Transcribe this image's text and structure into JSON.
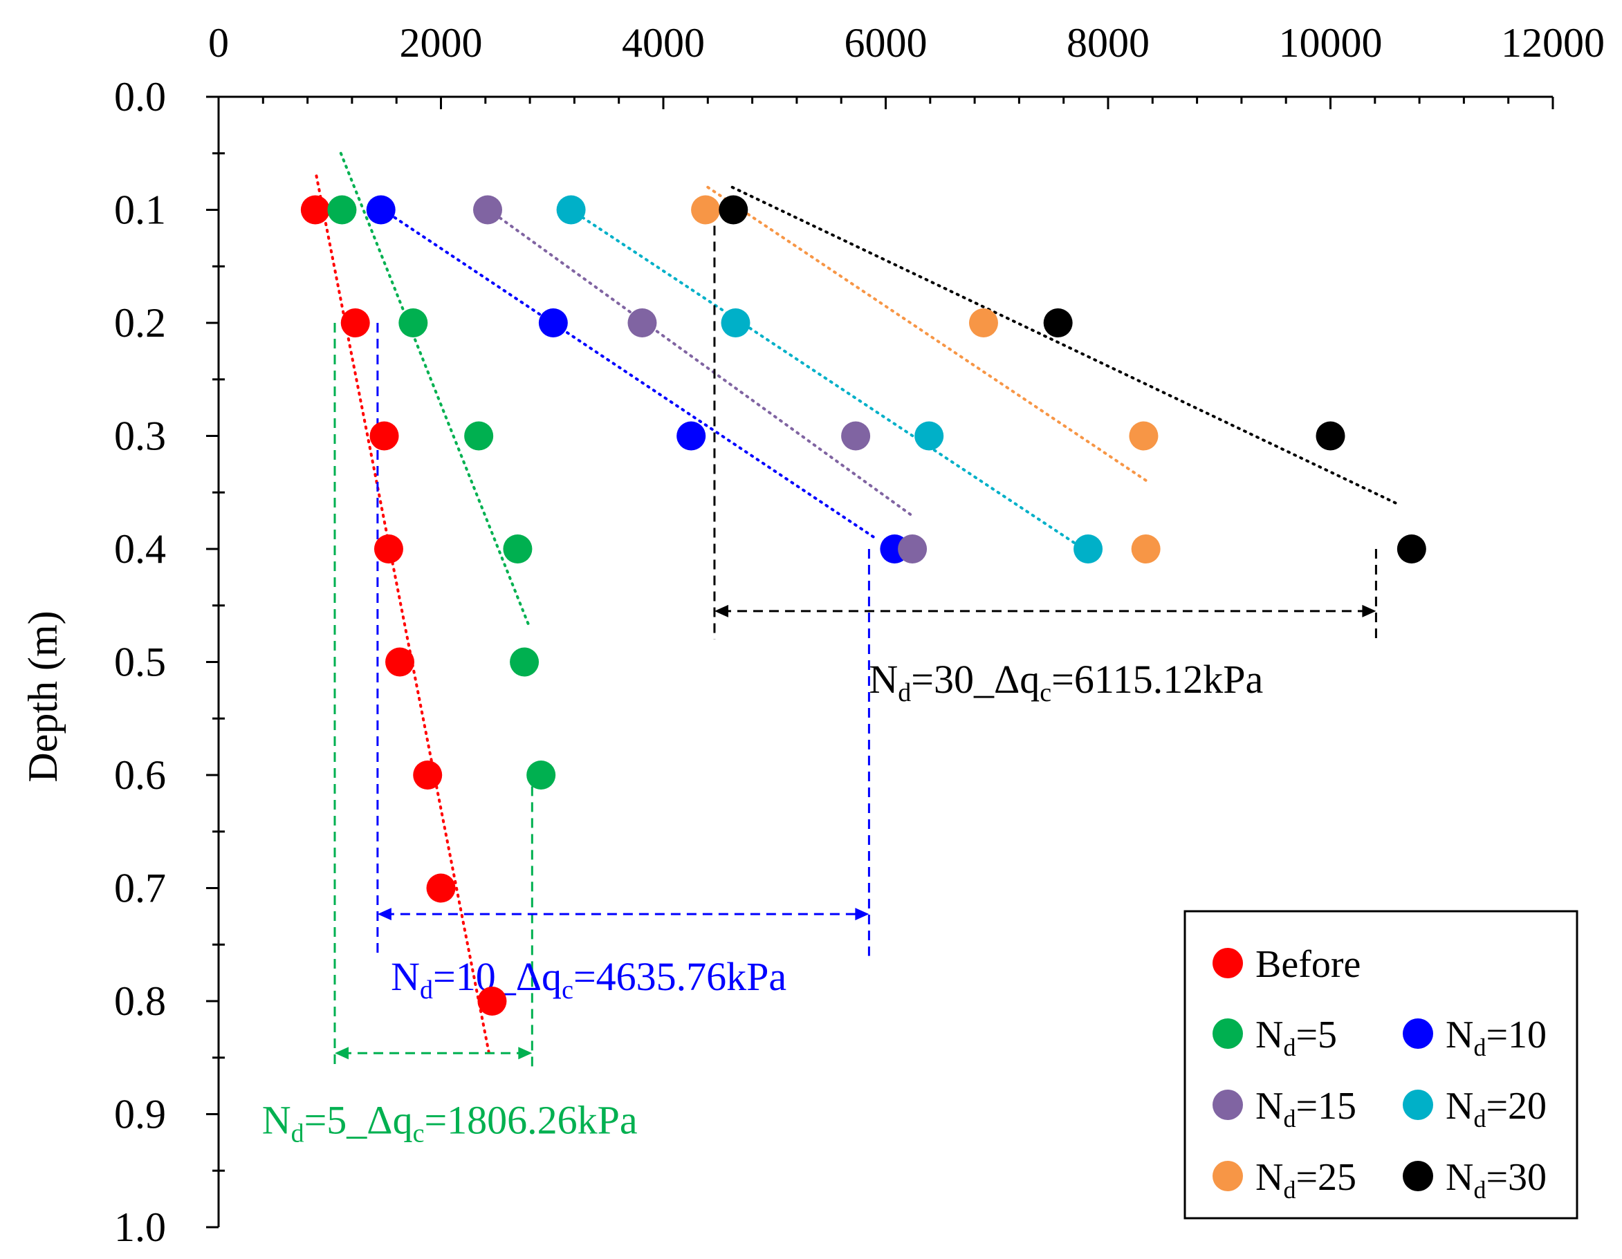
{
  "chart_data": {
    "type": "scatter",
    "title": "",
    "xlabel": "",
    "ylabel": "Depth (m)",
    "xlim": [
      0,
      12000
    ],
    "ylim": [
      0,
      1.0
    ],
    "y_inverted": true,
    "x_axis_position": "top",
    "x_ticks": [
      0,
      2000,
      4000,
      6000,
      8000,
      10000,
      12000
    ],
    "y_ticks": [
      0.0,
      0.1,
      0.2,
      0.3,
      0.4,
      0.5,
      0.6,
      0.7,
      0.8,
      0.9,
      1.0
    ],
    "x_tick_labels": [
      "0",
      "2000",
      "4000",
      "6000",
      "8000",
      "10000",
      "12000"
    ],
    "y_tick_labels": [
      "0.0",
      "0.1",
      "0.2",
      "0.3",
      "0.4",
      "0.5",
      "0.6",
      "0.7",
      "0.8",
      "0.9",
      "1.0"
    ],
    "legend_position": "bottom-right",
    "series": [
      {
        "name": "Before",
        "sub": "",
        "color": "#ff0000",
        "x": [
          870,
          1230,
          1490,
          1530,
          1630,
          1880,
          2000,
          2460
        ],
        "y": [
          0.1,
          0.2,
          0.3,
          0.4,
          0.5,
          0.6,
          0.7,
          0.8
        ],
        "trend": {
          "x": [
            880,
            2440
          ],
          "y": [
            0.07,
            0.85
          ]
        }
      },
      {
        "name": "N",
        "sub": "d",
        "suffix": "=5",
        "color": "#00b050",
        "x": [
          1110,
          1750,
          2340,
          2690,
          2750,
          2900
        ],
        "y": [
          0.1,
          0.2,
          0.3,
          0.4,
          0.5,
          0.6
        ],
        "trend": {
          "x": [
            1100,
            2800
          ],
          "y": [
            0.05,
            0.47
          ]
        }
      },
      {
        "name": "N",
        "sub": "d",
        "suffix": "=10",
        "color": "#0000ff",
        "x": [
          1460,
          3010,
          4250,
          6080
        ],
        "y": [
          0.1,
          0.2,
          0.3,
          0.4
        ],
        "trend": {
          "x": [
            1480,
            5900
          ],
          "y": [
            0.1,
            0.39
          ]
        }
      },
      {
        "name": "N",
        "sub": "d",
        "suffix": "=15",
        "color": "#8064a2",
        "x": [
          2420,
          3810,
          5730,
          6240
        ],
        "y": [
          0.1,
          0.2,
          0.3,
          0.4
        ],
        "trend": {
          "x": [
            2430,
            6230
          ],
          "y": [
            0.1,
            0.37
          ]
        }
      },
      {
        "name": "N",
        "sub": "d",
        "suffix": "=20",
        "color": "#00b0c8",
        "x": [
          3170,
          4650,
          6390,
          7820
        ],
        "y": [
          0.1,
          0.2,
          0.3,
          0.4
        ],
        "trend": {
          "x": [
            3170,
            7780
          ],
          "y": [
            0.1,
            0.4
          ]
        }
      },
      {
        "name": "N",
        "sub": "d",
        "suffix": "=25",
        "color": "#f79646",
        "x": [
          4380,
          6880,
          8320,
          8340
        ],
        "y": [
          0.1,
          0.2,
          0.3,
          0.4
        ],
        "trend": {
          "x": [
            4400,
            8350
          ],
          "y": [
            0.08,
            0.34
          ]
        }
      },
      {
        "name": "N",
        "sub": "d",
        "suffix": "=30",
        "color": "#000000",
        "x": [
          4630,
          7550,
          10000,
          10730
        ],
        "y": [
          0.1,
          0.2,
          0.3,
          0.4
        ],
        "trend": {
          "x": [
            4620,
            10600
          ],
          "y": [
            0.08,
            0.36
          ]
        }
      }
    ],
    "annotations": [
      {
        "id": "nd5",
        "color": "#00b050",
        "label": {
          "n": "N",
          "sub": "d",
          "mid": "=5_Δq",
          "sub2": "c",
          "value": "=1806.26kPa"
        },
        "x_from": 1045,
        "x_to": 2820,
        "left_y_from": 0.2,
        "right_y_from": 0.61,
        "arrow_y": 0.846,
        "line_bottom_y": 0.86,
        "label_x": 390,
        "label_y": 0.905
      },
      {
        "id": "nd10",
        "color": "#0000ff",
        "label": {
          "n": "N",
          "sub": "d",
          "mid": "=10_Δq",
          "sub2": "c",
          "value": "=4635.76kPa"
        },
        "x_from": 1430,
        "x_to": 5850,
        "left_y_from": 0.2,
        "right_y_from": 0.4,
        "arrow_y": 0.723,
        "line_bottom_y": 0.76,
        "label_x": 1550,
        "label_y": 0.778
      },
      {
        "id": "nd30",
        "color": "#000000",
        "label": {
          "n": "N",
          "sub": "d",
          "mid": "=30_Δq",
          "sub2": "c",
          "value": "=6115.12kPa"
        },
        "x_from": 4460,
        "x_to": 10410,
        "left_y_from": 0.1,
        "right_y_from": 0.4,
        "arrow_y": 0.455,
        "line_bottom_y": 0.48,
        "label_x": 5850,
        "label_y": 0.515
      }
    ]
  }
}
